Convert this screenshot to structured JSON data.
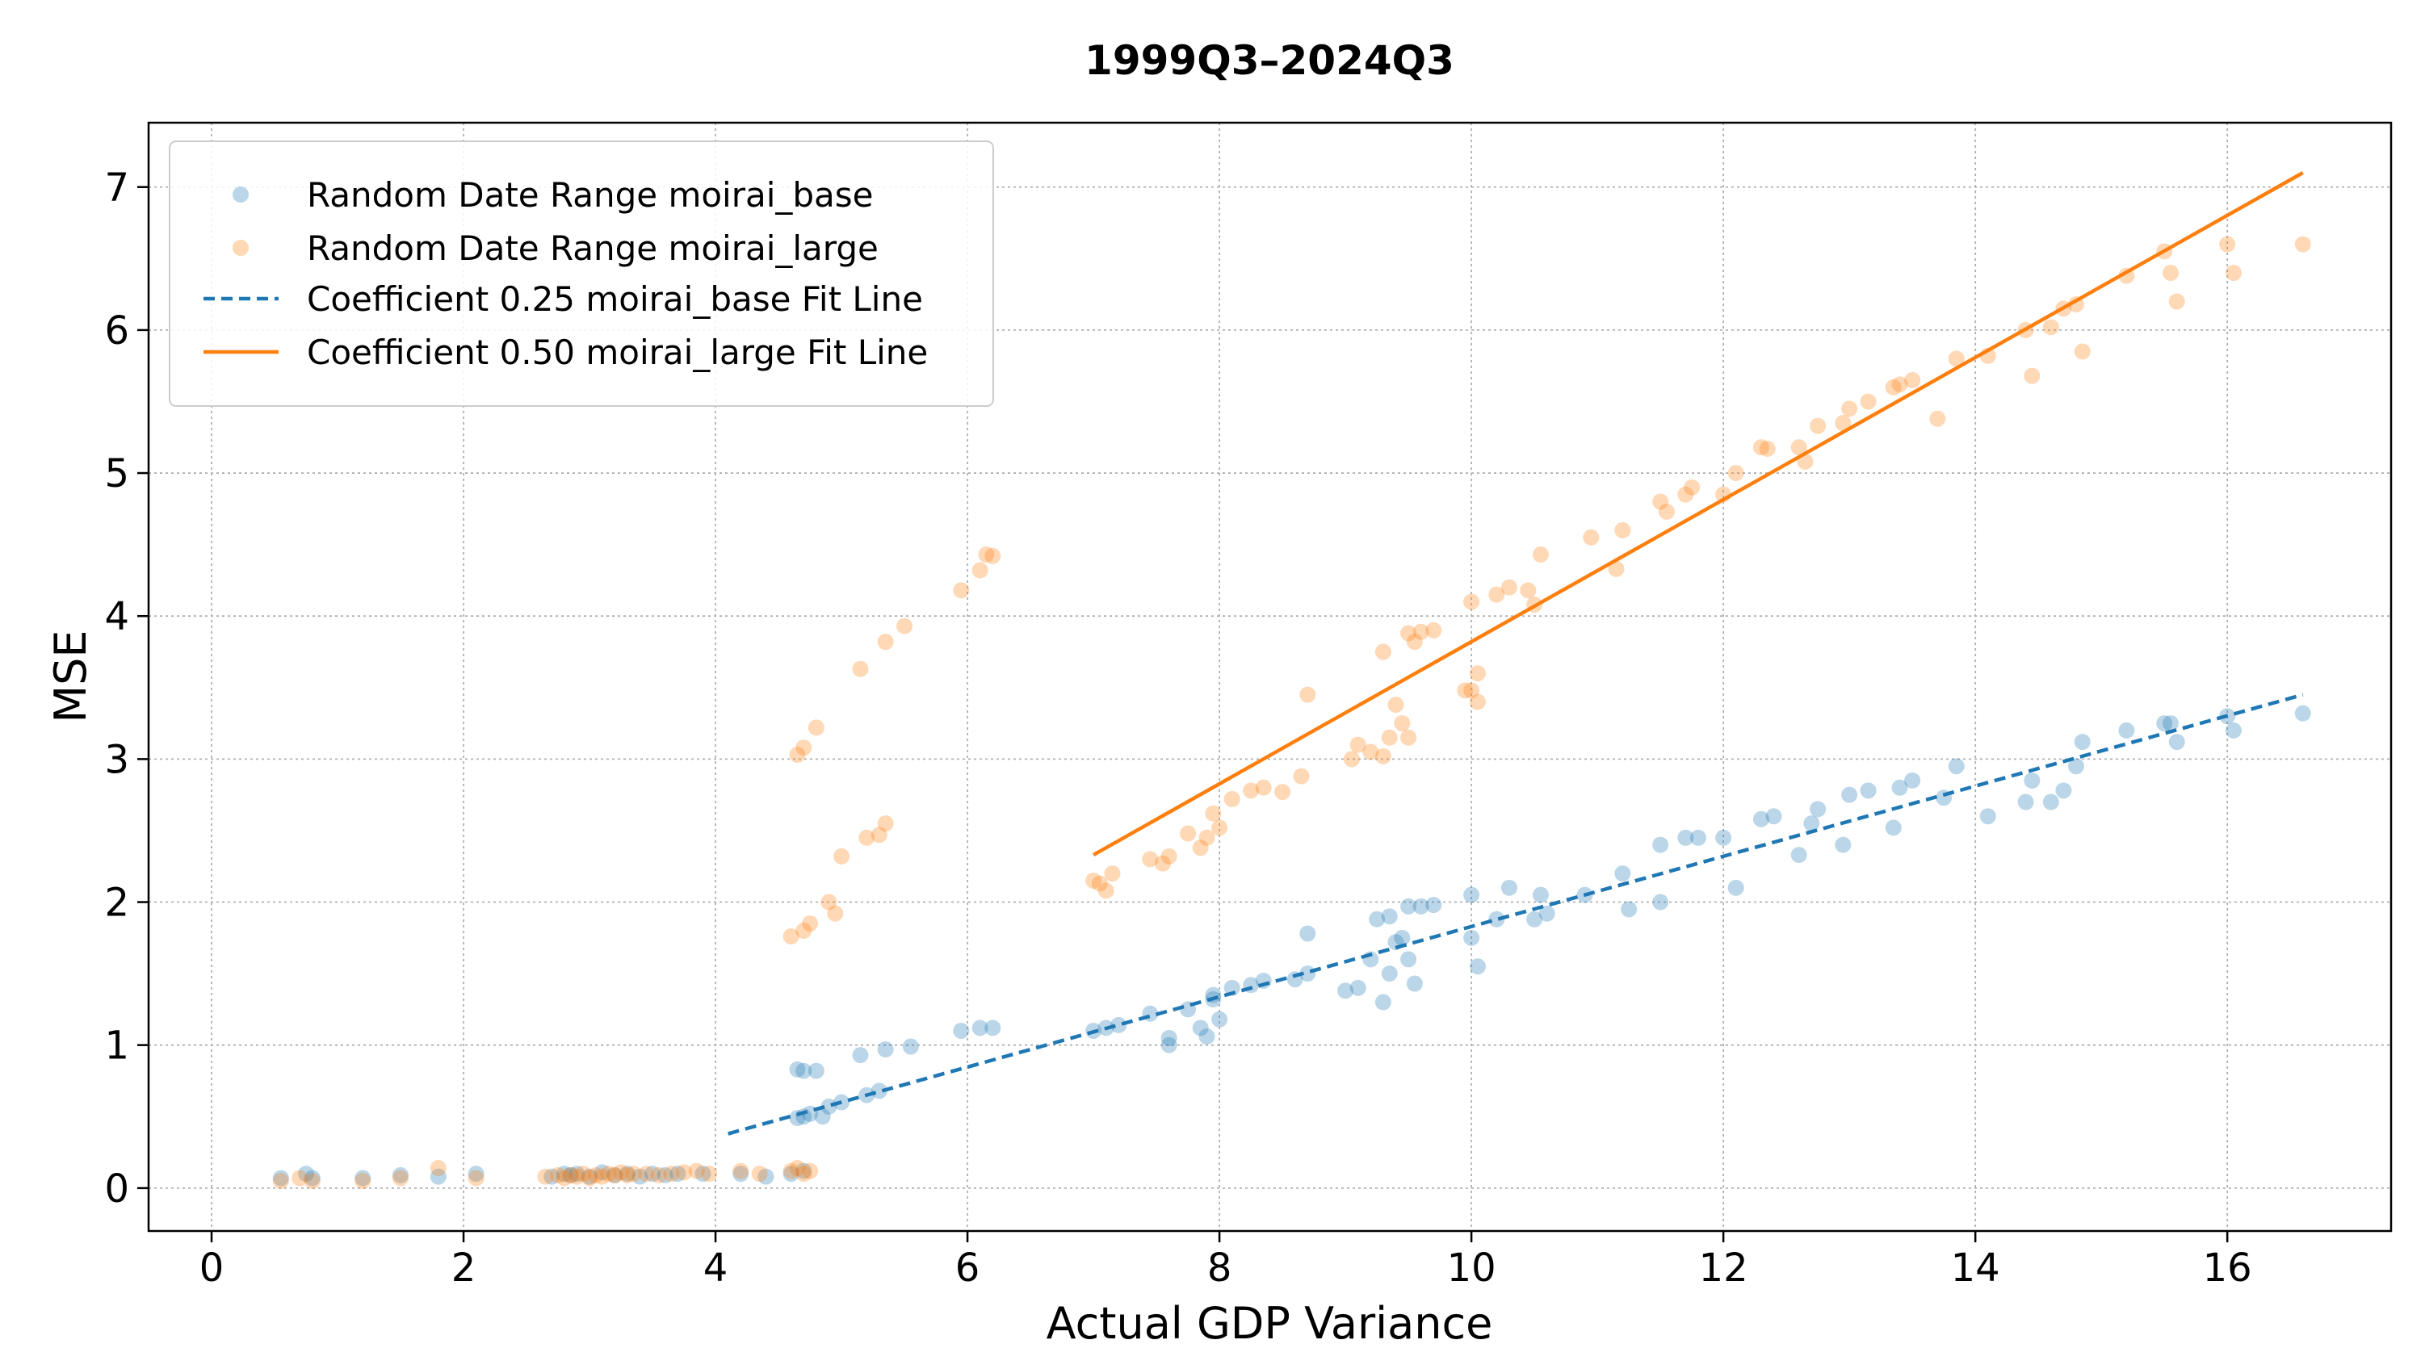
{
  "chart_data": {
    "type": "scatter",
    "title": "1999Q3–2024Q3",
    "xlabel": "Actual GDP Variance",
    "ylabel": "MSE",
    "xlim": [
      -0.5,
      17.3
    ],
    "ylim": [
      -0.3,
      7.45
    ],
    "xticks": [
      0,
      2,
      4,
      6,
      8,
      10,
      12,
      14,
      16
    ],
    "yticks": [
      0,
      1,
      2,
      3,
      4,
      5,
      6,
      7
    ],
    "grid": true,
    "legend_position": "upper-left",
    "series": [
      {
        "name": "Random Date Range moirai_base",
        "kind": "scatter",
        "color": "#1f77b4",
        "points": [
          [
            0.55,
            0.07
          ],
          [
            0.75,
            0.1
          ],
          [
            0.8,
            0.07
          ],
          [
            1.2,
            0.07
          ],
          [
            1.5,
            0.09
          ],
          [
            1.8,
            0.08
          ],
          [
            2.1,
            0.1
          ],
          [
            2.7,
            0.08
          ],
          [
            2.8,
            0.1
          ],
          [
            2.85,
            0.09
          ],
          [
            2.9,
            0.1
          ],
          [
            3.0,
            0.08
          ],
          [
            3.1,
            0.11
          ],
          [
            3.2,
            0.09
          ],
          [
            3.3,
            0.1
          ],
          [
            3.4,
            0.08
          ],
          [
            3.5,
            0.1
          ],
          [
            3.6,
            0.09
          ],
          [
            3.7,
            0.1
          ],
          [
            3.9,
            0.1
          ],
          [
            4.2,
            0.1
          ],
          [
            4.4,
            0.08
          ],
          [
            4.6,
            0.1
          ],
          [
            4.7,
            0.12
          ],
          [
            4.65,
            0.49
          ],
          [
            4.7,
            0.5
          ],
          [
            4.75,
            0.52
          ],
          [
            4.85,
            0.5
          ],
          [
            4.9,
            0.57
          ],
          [
            5.0,
            0.6
          ],
          [
            5.2,
            0.65
          ],
          [
            5.3,
            0.68
          ],
          [
            4.65,
            0.83
          ],
          [
            4.7,
            0.82
          ],
          [
            4.8,
            0.82
          ],
          [
            5.15,
            0.93
          ],
          [
            5.35,
            0.97
          ],
          [
            5.55,
            0.99
          ],
          [
            5.95,
            1.1
          ],
          [
            6.1,
            1.12
          ],
          [
            6.2,
            1.12
          ],
          [
            7.0,
            1.1
          ],
          [
            7.1,
            1.12
          ],
          [
            7.2,
            1.14
          ],
          [
            7.45,
            1.22
          ],
          [
            7.6,
            1.0
          ],
          [
            7.6,
            1.05
          ],
          [
            7.75,
            1.25
          ],
          [
            7.85,
            1.12
          ],
          [
            7.9,
            1.06
          ],
          [
            7.95,
            1.32
          ],
          [
            7.95,
            1.35
          ],
          [
            8.0,
            1.18
          ],
          [
            8.1,
            1.4
          ],
          [
            8.25,
            1.42
          ],
          [
            8.35,
            1.45
          ],
          [
            8.6,
            1.46
          ],
          [
            8.7,
            1.5
          ],
          [
            8.7,
            1.78
          ],
          [
            9.0,
            1.38
          ],
          [
            9.1,
            1.4
          ],
          [
            9.2,
            1.6
          ],
          [
            9.25,
            1.88
          ],
          [
            9.3,
            1.3
          ],
          [
            9.35,
            1.5
          ],
          [
            9.35,
            1.9
          ],
          [
            9.4,
            1.72
          ],
          [
            9.45,
            1.75
          ],
          [
            9.5,
            1.6
          ],
          [
            9.5,
            1.97
          ],
          [
            9.55,
            1.43
          ],
          [
            9.6,
            1.97
          ],
          [
            9.7,
            1.98
          ],
          [
            10.0,
            1.75
          ],
          [
            10.0,
            2.05
          ],
          [
            10.05,
            1.55
          ],
          [
            10.2,
            1.88
          ],
          [
            10.3,
            2.1
          ],
          [
            10.5,
            1.88
          ],
          [
            10.55,
            2.05
          ],
          [
            10.6,
            1.92
          ],
          [
            10.9,
            2.05
          ],
          [
            11.2,
            2.2
          ],
          [
            11.25,
            1.95
          ],
          [
            11.5,
            2.0
          ],
          [
            11.5,
            2.4
          ],
          [
            11.7,
            2.45
          ],
          [
            11.8,
            2.45
          ],
          [
            12.0,
            2.45
          ],
          [
            12.1,
            2.1
          ],
          [
            12.3,
            2.58
          ],
          [
            12.4,
            2.6
          ],
          [
            12.6,
            2.33
          ],
          [
            12.7,
            2.55
          ],
          [
            12.75,
            2.65
          ],
          [
            12.95,
            2.4
          ],
          [
            13.0,
            2.75
          ],
          [
            13.15,
            2.78
          ],
          [
            13.35,
            2.52
          ],
          [
            13.4,
            2.8
          ],
          [
            13.5,
            2.85
          ],
          [
            13.75,
            2.73
          ],
          [
            13.85,
            2.95
          ],
          [
            14.1,
            2.6
          ],
          [
            14.4,
            2.7
          ],
          [
            14.45,
            2.85
          ],
          [
            14.6,
            2.7
          ],
          [
            14.7,
            2.78
          ],
          [
            14.8,
            2.95
          ],
          [
            14.85,
            3.12
          ],
          [
            15.2,
            3.2
          ],
          [
            15.5,
            3.25
          ],
          [
            15.55,
            3.25
          ],
          [
            15.6,
            3.12
          ],
          [
            16.0,
            3.3
          ],
          [
            16.05,
            3.2
          ],
          [
            16.6,
            3.32
          ]
        ]
      },
      {
        "name": "Random Date Range moirai_large",
        "kind": "scatter",
        "color": "#ff7f0e",
        "points": [
          [
            0.55,
            0.05
          ],
          [
            0.7,
            0.07
          ],
          [
            0.8,
            0.05
          ],
          [
            1.2,
            0.05
          ],
          [
            1.5,
            0.07
          ],
          [
            1.8,
            0.14
          ],
          [
            2.1,
            0.07
          ],
          [
            2.65,
            0.08
          ],
          [
            2.75,
            0.09
          ],
          [
            2.8,
            0.07
          ],
          [
            2.85,
            0.09
          ],
          [
            2.9,
            0.08
          ],
          [
            2.95,
            0.1
          ],
          [
            3.0,
            0.07
          ],
          [
            3.05,
            0.09
          ],
          [
            3.1,
            0.08
          ],
          [
            3.15,
            0.1
          ],
          [
            3.2,
            0.09
          ],
          [
            3.25,
            0.11
          ],
          [
            3.3,
            0.09
          ],
          [
            3.35,
            0.1
          ],
          [
            3.45,
            0.1
          ],
          [
            3.55,
            0.09
          ],
          [
            3.65,
            0.1
          ],
          [
            3.75,
            0.11
          ],
          [
            3.85,
            0.12
          ],
          [
            3.95,
            0.1
          ],
          [
            4.2,
            0.12
          ],
          [
            4.35,
            0.1
          ],
          [
            4.6,
            0.12
          ],
          [
            4.65,
            0.14
          ],
          [
            4.7,
            0.1
          ],
          [
            4.75,
            0.12
          ],
          [
            4.6,
            1.76
          ],
          [
            4.7,
            1.8
          ],
          [
            4.75,
            1.85
          ],
          [
            4.9,
            2.0
          ],
          [
            4.95,
            1.92
          ],
          [
            5.0,
            2.32
          ],
          [
            5.2,
            2.45
          ],
          [
            5.3,
            2.47
          ],
          [
            5.35,
            2.55
          ],
          [
            4.65,
            3.03
          ],
          [
            4.7,
            3.08
          ],
          [
            4.8,
            3.22
          ],
          [
            5.15,
            3.63
          ],
          [
            5.35,
            3.82
          ],
          [
            5.5,
            3.93
          ],
          [
            5.95,
            4.18
          ],
          [
            6.1,
            4.32
          ],
          [
            6.15,
            4.43
          ],
          [
            6.2,
            4.42
          ],
          [
            7.0,
            2.15
          ],
          [
            7.05,
            2.13
          ],
          [
            7.1,
            2.08
          ],
          [
            7.15,
            2.2
          ],
          [
            7.45,
            2.3
          ],
          [
            7.55,
            2.27
          ],
          [
            7.6,
            2.32
          ],
          [
            7.75,
            2.48
          ],
          [
            7.85,
            2.38
          ],
          [
            7.9,
            2.45
          ],
          [
            7.95,
            2.62
          ],
          [
            8.0,
            2.52
          ],
          [
            8.1,
            2.72
          ],
          [
            8.25,
            2.78
          ],
          [
            8.35,
            2.8
          ],
          [
            8.5,
            2.77
          ],
          [
            8.65,
            2.88
          ],
          [
            8.7,
            3.45
          ],
          [
            9.05,
            3.0
          ],
          [
            9.1,
            3.1
          ],
          [
            9.2,
            3.05
          ],
          [
            9.3,
            3.02
          ],
          [
            9.3,
            3.75
          ],
          [
            9.35,
            3.15
          ],
          [
            9.4,
            3.38
          ],
          [
            9.45,
            3.25
          ],
          [
            9.5,
            3.15
          ],
          [
            9.5,
            3.88
          ],
          [
            9.55,
            3.82
          ],
          [
            9.6,
            3.89
          ],
          [
            9.7,
            3.9
          ],
          [
            9.95,
            3.48
          ],
          [
            10.0,
            3.48
          ],
          [
            10.0,
            4.1
          ],
          [
            10.05,
            3.6
          ],
          [
            10.05,
            3.4
          ],
          [
            10.2,
            4.15
          ],
          [
            10.3,
            4.2
          ],
          [
            10.45,
            4.18
          ],
          [
            10.5,
            4.08
          ],
          [
            10.55,
            4.43
          ],
          [
            10.95,
            4.55
          ],
          [
            11.15,
            4.33
          ],
          [
            11.2,
            4.6
          ],
          [
            11.5,
            4.8
          ],
          [
            11.55,
            4.73
          ],
          [
            11.7,
            4.85
          ],
          [
            11.75,
            4.9
          ],
          [
            12.0,
            4.85
          ],
          [
            12.1,
            5.0
          ],
          [
            12.3,
            5.18
          ],
          [
            12.35,
            5.17
          ],
          [
            12.6,
            5.18
          ],
          [
            12.65,
            5.08
          ],
          [
            12.75,
            5.33
          ],
          [
            12.95,
            5.35
          ],
          [
            13.0,
            5.45
          ],
          [
            13.15,
            5.5
          ],
          [
            13.35,
            5.6
          ],
          [
            13.4,
            5.62
          ],
          [
            13.5,
            5.65
          ],
          [
            13.7,
            5.38
          ],
          [
            13.85,
            5.8
          ],
          [
            14.1,
            5.82
          ],
          [
            14.4,
            6.0
          ],
          [
            14.45,
            5.68
          ],
          [
            14.6,
            6.02
          ],
          [
            14.7,
            6.15
          ],
          [
            14.8,
            6.18
          ],
          [
            14.85,
            5.85
          ],
          [
            15.2,
            6.38
          ],
          [
            15.5,
            6.55
          ],
          [
            15.55,
            6.4
          ],
          [
            15.6,
            6.2
          ],
          [
            16.0,
            6.6
          ],
          [
            16.05,
            6.4
          ],
          [
            16.6,
            6.6
          ]
        ]
      },
      {
        "name": "Coefficient 0.25 moirai_base Fit Line",
        "kind": "line",
        "style": "dashed",
        "color": "#1f77b4",
        "x": [
          4.1,
          16.6
        ],
        "y": [
          0.38,
          3.45
        ]
      },
      {
        "name": "Coefficient 0.50 moirai_large Fit Line",
        "kind": "line",
        "style": "solid",
        "color": "#ff7f0e",
        "x": [
          7.0,
          16.6
        ],
        "y": [
          2.33,
          7.1
        ]
      }
    ]
  }
}
